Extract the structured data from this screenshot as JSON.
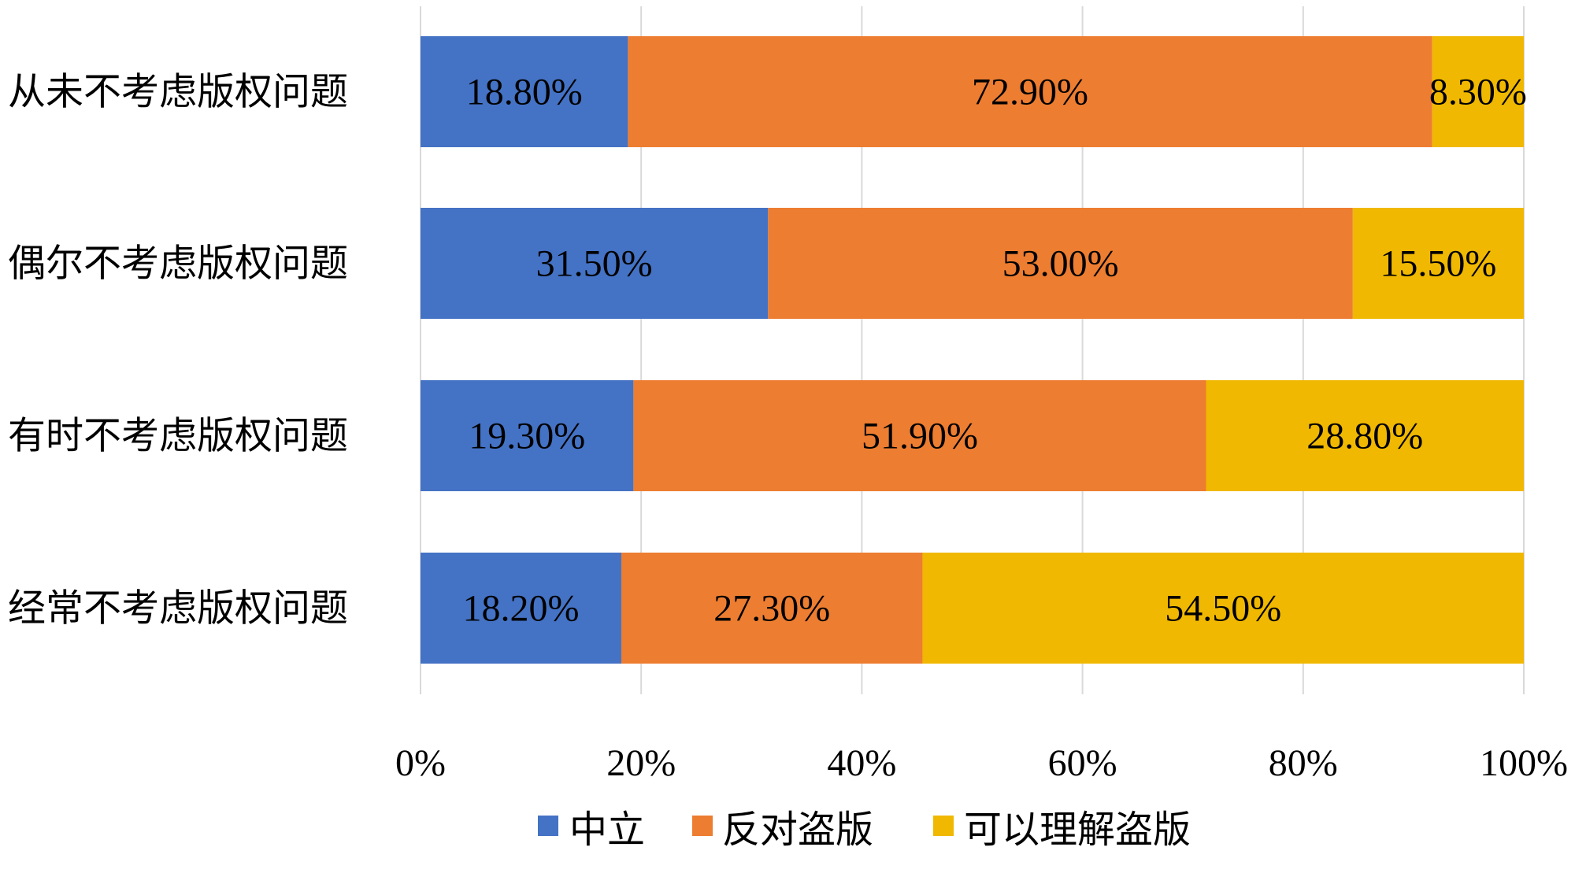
{
  "chart_data": {
    "type": "bar",
    "orientation": "horizontal",
    "stacked": "percent",
    "categories": [
      "从未不考虑版权问题",
      "偶尔不考虑版权问题",
      "有时不考虑版权问题",
      "经常不考虑版权问题"
    ],
    "series": [
      {
        "name": "中立",
        "color": "#4472C4",
        "values": [
          18.8,
          31.5,
          19.3,
          18.2
        ],
        "labels": [
          "18.80%",
          "31.50%",
          "19.30%",
          "18.20%"
        ]
      },
      {
        "name": "反对盗版",
        "color": "#ED7D31",
        "values": [
          72.9,
          53.0,
          51.9,
          27.3
        ],
        "labels": [
          "72.90%",
          "53.00%",
          "51.90%",
          "27.30%"
        ]
      },
      {
        "name": "可以理解盗版",
        "color": "#F0B800",
        "values": [
          8.3,
          15.5,
          28.8,
          54.5
        ],
        "labels": [
          "8.30%",
          "15.50%",
          "28.80%",
          "54.50%"
        ]
      }
    ],
    "xlim": [
      0,
      100
    ],
    "x_ticks": [
      0,
      20,
      40,
      60,
      80,
      100
    ],
    "x_tick_labels": [
      "0%",
      "20%",
      "40%",
      "60%",
      "80%",
      "100%"
    ],
    "grid": true,
    "legend_position": "bottom",
    "title": "",
    "xlabel": "",
    "ylabel": ""
  }
}
